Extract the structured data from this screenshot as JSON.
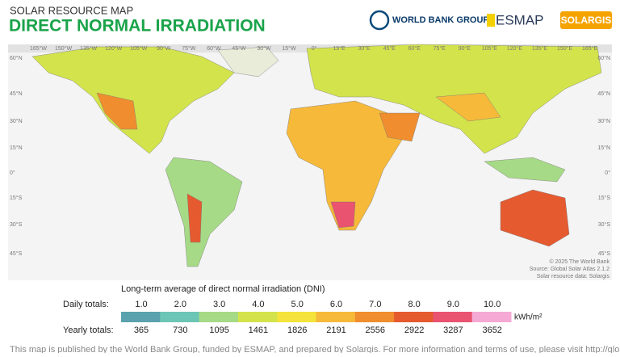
{
  "header": {
    "kicker": "SOLAR RESOURCE MAP",
    "title": "DIRECT NORMAL IRRADIATION",
    "logos": [
      "WORLD BANK GROUP",
      "ESMAP",
      "SOLARGIS"
    ]
  },
  "map": {
    "longitudes": [
      "165°W",
      "150°W",
      "135°W",
      "120°W",
      "105°W",
      "90°W",
      "75°W",
      "60°W",
      "45°W",
      "30°W",
      "15°W",
      "0°",
      "15°E",
      "30°E",
      "45°E",
      "60°E",
      "75°E",
      "90°E",
      "105°E",
      "120°E",
      "135°E",
      "150°E",
      "165°E"
    ],
    "latitudes": [
      "60°N",
      "45°N",
      "30°N",
      "15°N",
      "0°",
      "15°S",
      "30°S",
      "45°S"
    ],
    "credits": [
      "© 2025 The World Bank",
      "Source: Global Solar Atlas 2.1.2",
      "Solar resource data: Solargis"
    ]
  },
  "legend": {
    "title": "Long-term average of direct normal irradiation (DNI)",
    "daily_label": "Daily totals:",
    "yearly_label": "Yearly totals:",
    "unit": "kWh/m²",
    "daily": [
      "1.0",
      "2.0",
      "3.0",
      "4.0",
      "5.0",
      "6.0",
      "7.0",
      "8.0",
      "9.0",
      "10.0"
    ],
    "yearly": [
      "365",
      "730",
      "1095",
      "1461",
      "1826",
      "2191",
      "2556",
      "2922",
      "3287",
      "3652"
    ],
    "colors": [
      "#5aa2ae",
      "#6cc6b6",
      "#a6da86",
      "#d3e34c",
      "#f4e33a",
      "#f6b93a",
      "#f08d2f",
      "#e65a30",
      "#e9536f",
      "#f5aad6"
    ]
  },
  "footer": "This map is published by the World Bank Group, funded by ESMAP, and prepared by Solargis. For more information and terms of use, please visit http://globalsolaratlas.info"
}
